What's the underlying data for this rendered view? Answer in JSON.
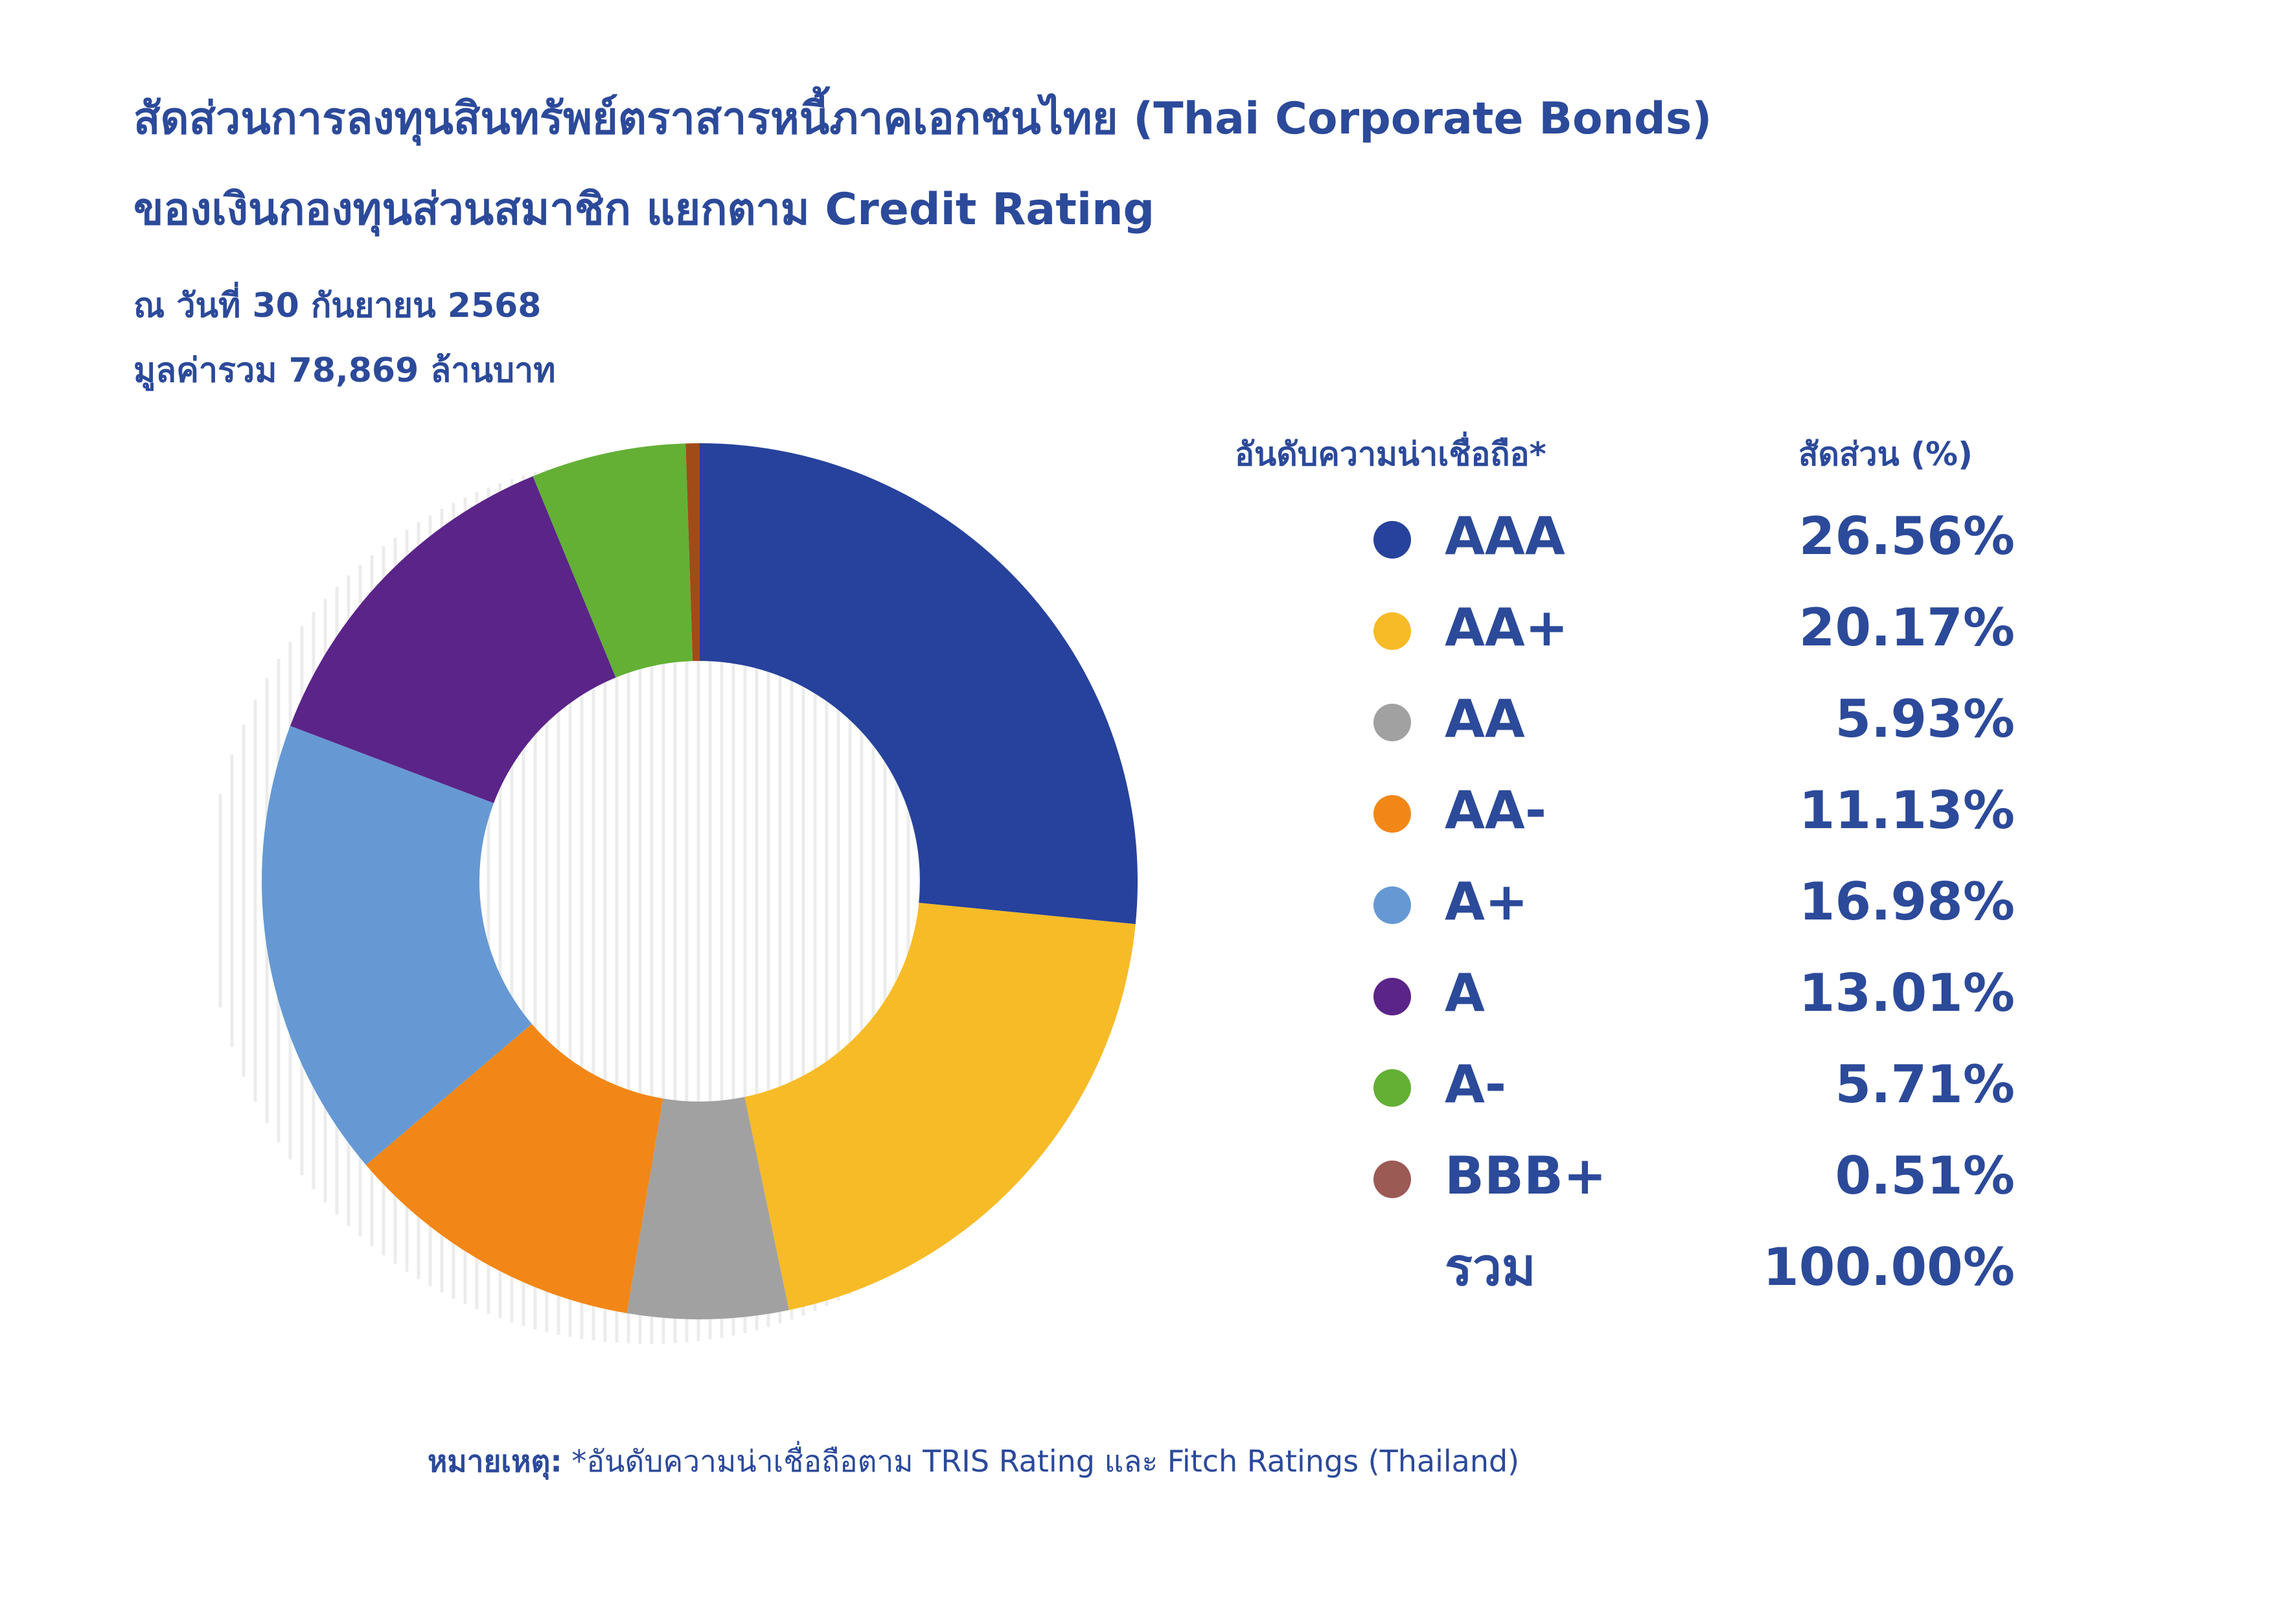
{
  "header": {
    "title_line1": "สัดส่วนการลงทุนสินทรัพย์ตราสารหนี้ภาคเอกชนไทย (Thai Corporate Bonds)",
    "title_line2": "ของเงินกองทุนส่วนสมาชิก แยกตาม Credit Rating",
    "as_of": "ณ วันที่ 30 กันยายน 2568",
    "total_value": "มูลค่ารวม 78,869 ล้านบาท"
  },
  "legend": {
    "header_rating": "อันดับความน่าเชื่อถือ*",
    "header_share": "สัดส่วน (%)",
    "total_label": "รวม",
    "total_value": "100.00%"
  },
  "chart_data": {
    "type": "pie",
    "categories": [
      "AAA",
      "AA+",
      "AA",
      "AA-",
      "A+",
      "A",
      "A-",
      "BBB+"
    ],
    "values": [
      26.56,
      20.17,
      5.93,
      11.13,
      16.98,
      13.01,
      5.71,
      0.51
    ],
    "value_labels": [
      "26.56%",
      "20.17%",
      "5.93%",
      "11.13%",
      "16.98%",
      "13.01%",
      "5.71%",
      "0.51%"
    ],
    "colors": [
      "#27429c",
      "#f7bb27",
      "#a1a1a1",
      "#f28717",
      "#6699d4",
      "#5b2489",
      "#63b035",
      "#a04c18"
    ],
    "legend_dot_colors": [
      "#27429c",
      "#f7bb27",
      "#a1a1a1",
      "#f28717",
      "#6699d4",
      "#5b2489",
      "#63b035",
      "#9c5a55"
    ],
    "legend_position": "right",
    "donut": true
  },
  "footnote": {
    "label": "หมายเหตุ:",
    "text": " *อันดับความน่าเชื่อถือตาม TRIS Rating และ Fitch Ratings (Thailand)"
  }
}
